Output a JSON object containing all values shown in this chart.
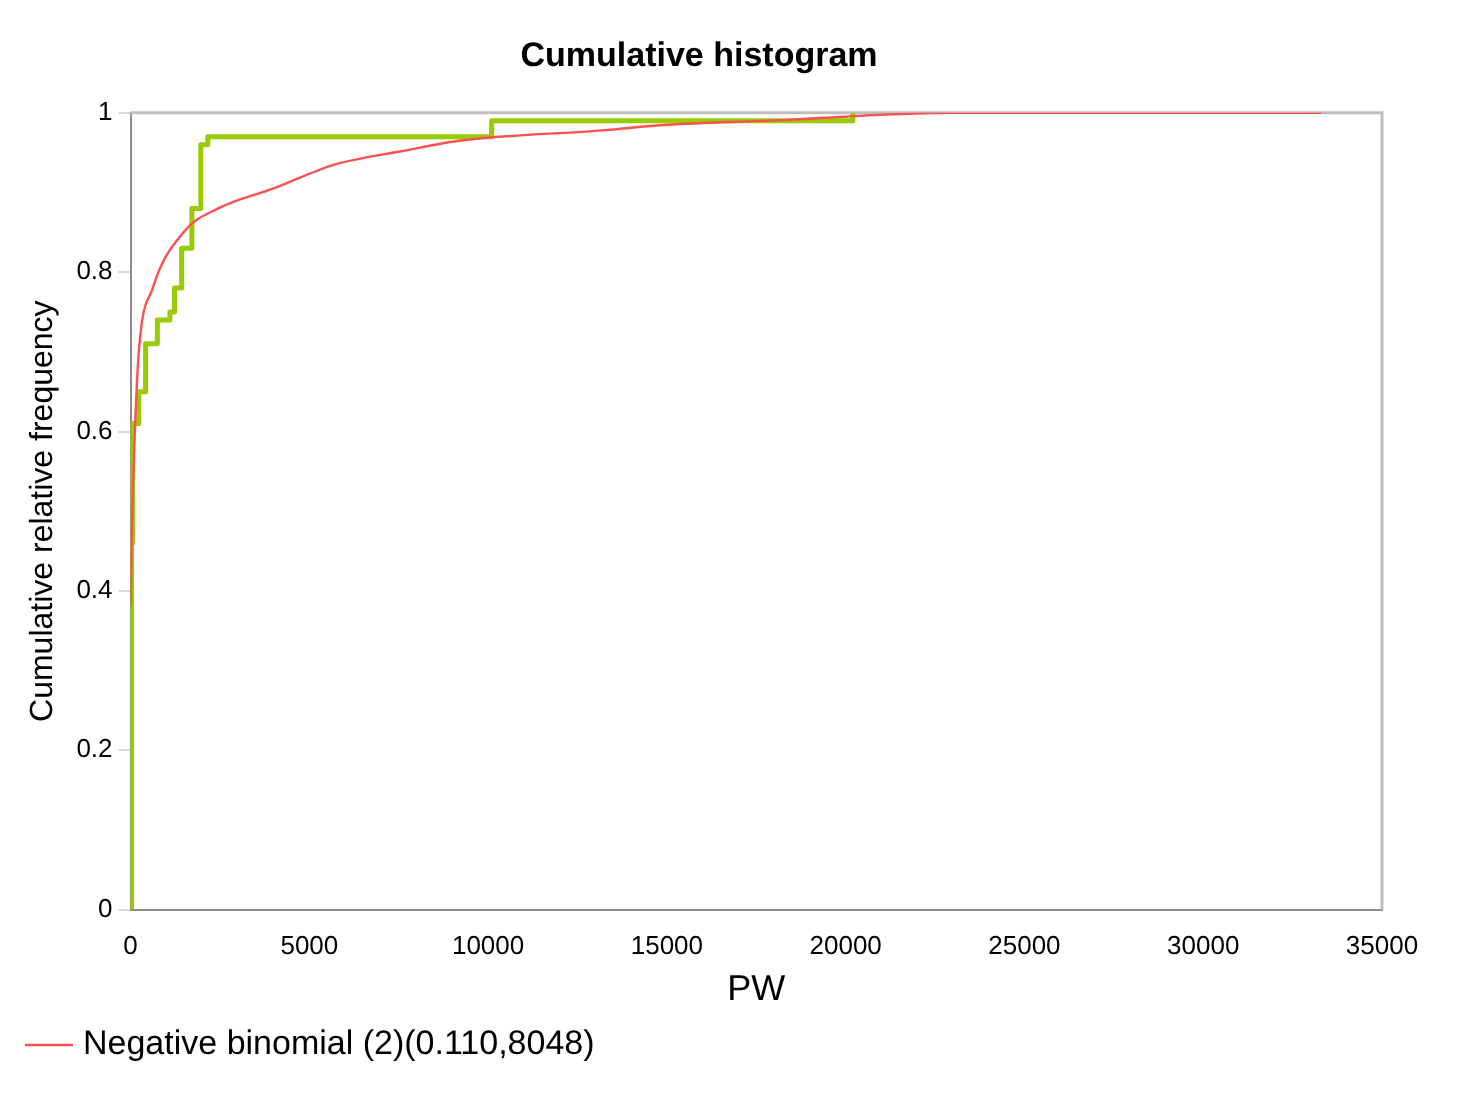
{
  "chart_data": {
    "type": "step",
    "title": "Cumulative histogram",
    "xlabel": "PW",
    "ylabel": "Cumulative relative frequency",
    "xlim": [
      0,
      35000
    ],
    "xticks": [
      0,
      5000,
      10000,
      15000,
      20000,
      25000,
      30000,
      35000
    ],
    "ylim": [
      0,
      1
    ],
    "yticks": [
      0,
      0.2,
      0.4,
      0.6,
      0.8,
      1
    ],
    "grid": false,
    "legend": "bottom",
    "series": [
      {
        "color": "#99cc00",
        "x": [
          0,
          30,
          60,
          230,
          420,
          750,
          1100,
          1230,
          1430,
          1715,
          1965,
          2160,
          10100,
          20200
        ],
        "values": [
          0,
          0.46,
          0.61,
          0.65,
          0.71,
          0.74,
          0.75,
          0.78,
          0.83,
          0.88,
          0.96,
          0.97,
          0.99,
          1
        ]
      },
      {
        "type": "line",
        "name": "Negative binomial (2)(0.110,8048)",
        "color": "#ff5050",
        "x": [
          0,
          50,
          130,
          230,
          620,
          1480,
          2450,
          4000,
          5700,
          7600,
          9200,
          13200,
          15000,
          17800,
          23000,
          33300
        ],
        "values": [
          0.38,
          0.5,
          0.61,
          0.7,
          0.78,
          0.85,
          0.88,
          0.905,
          0.935,
          0.952,
          0.965,
          0.978,
          0.985,
          0.99,
          1,
          1
        ]
      }
    ]
  }
}
